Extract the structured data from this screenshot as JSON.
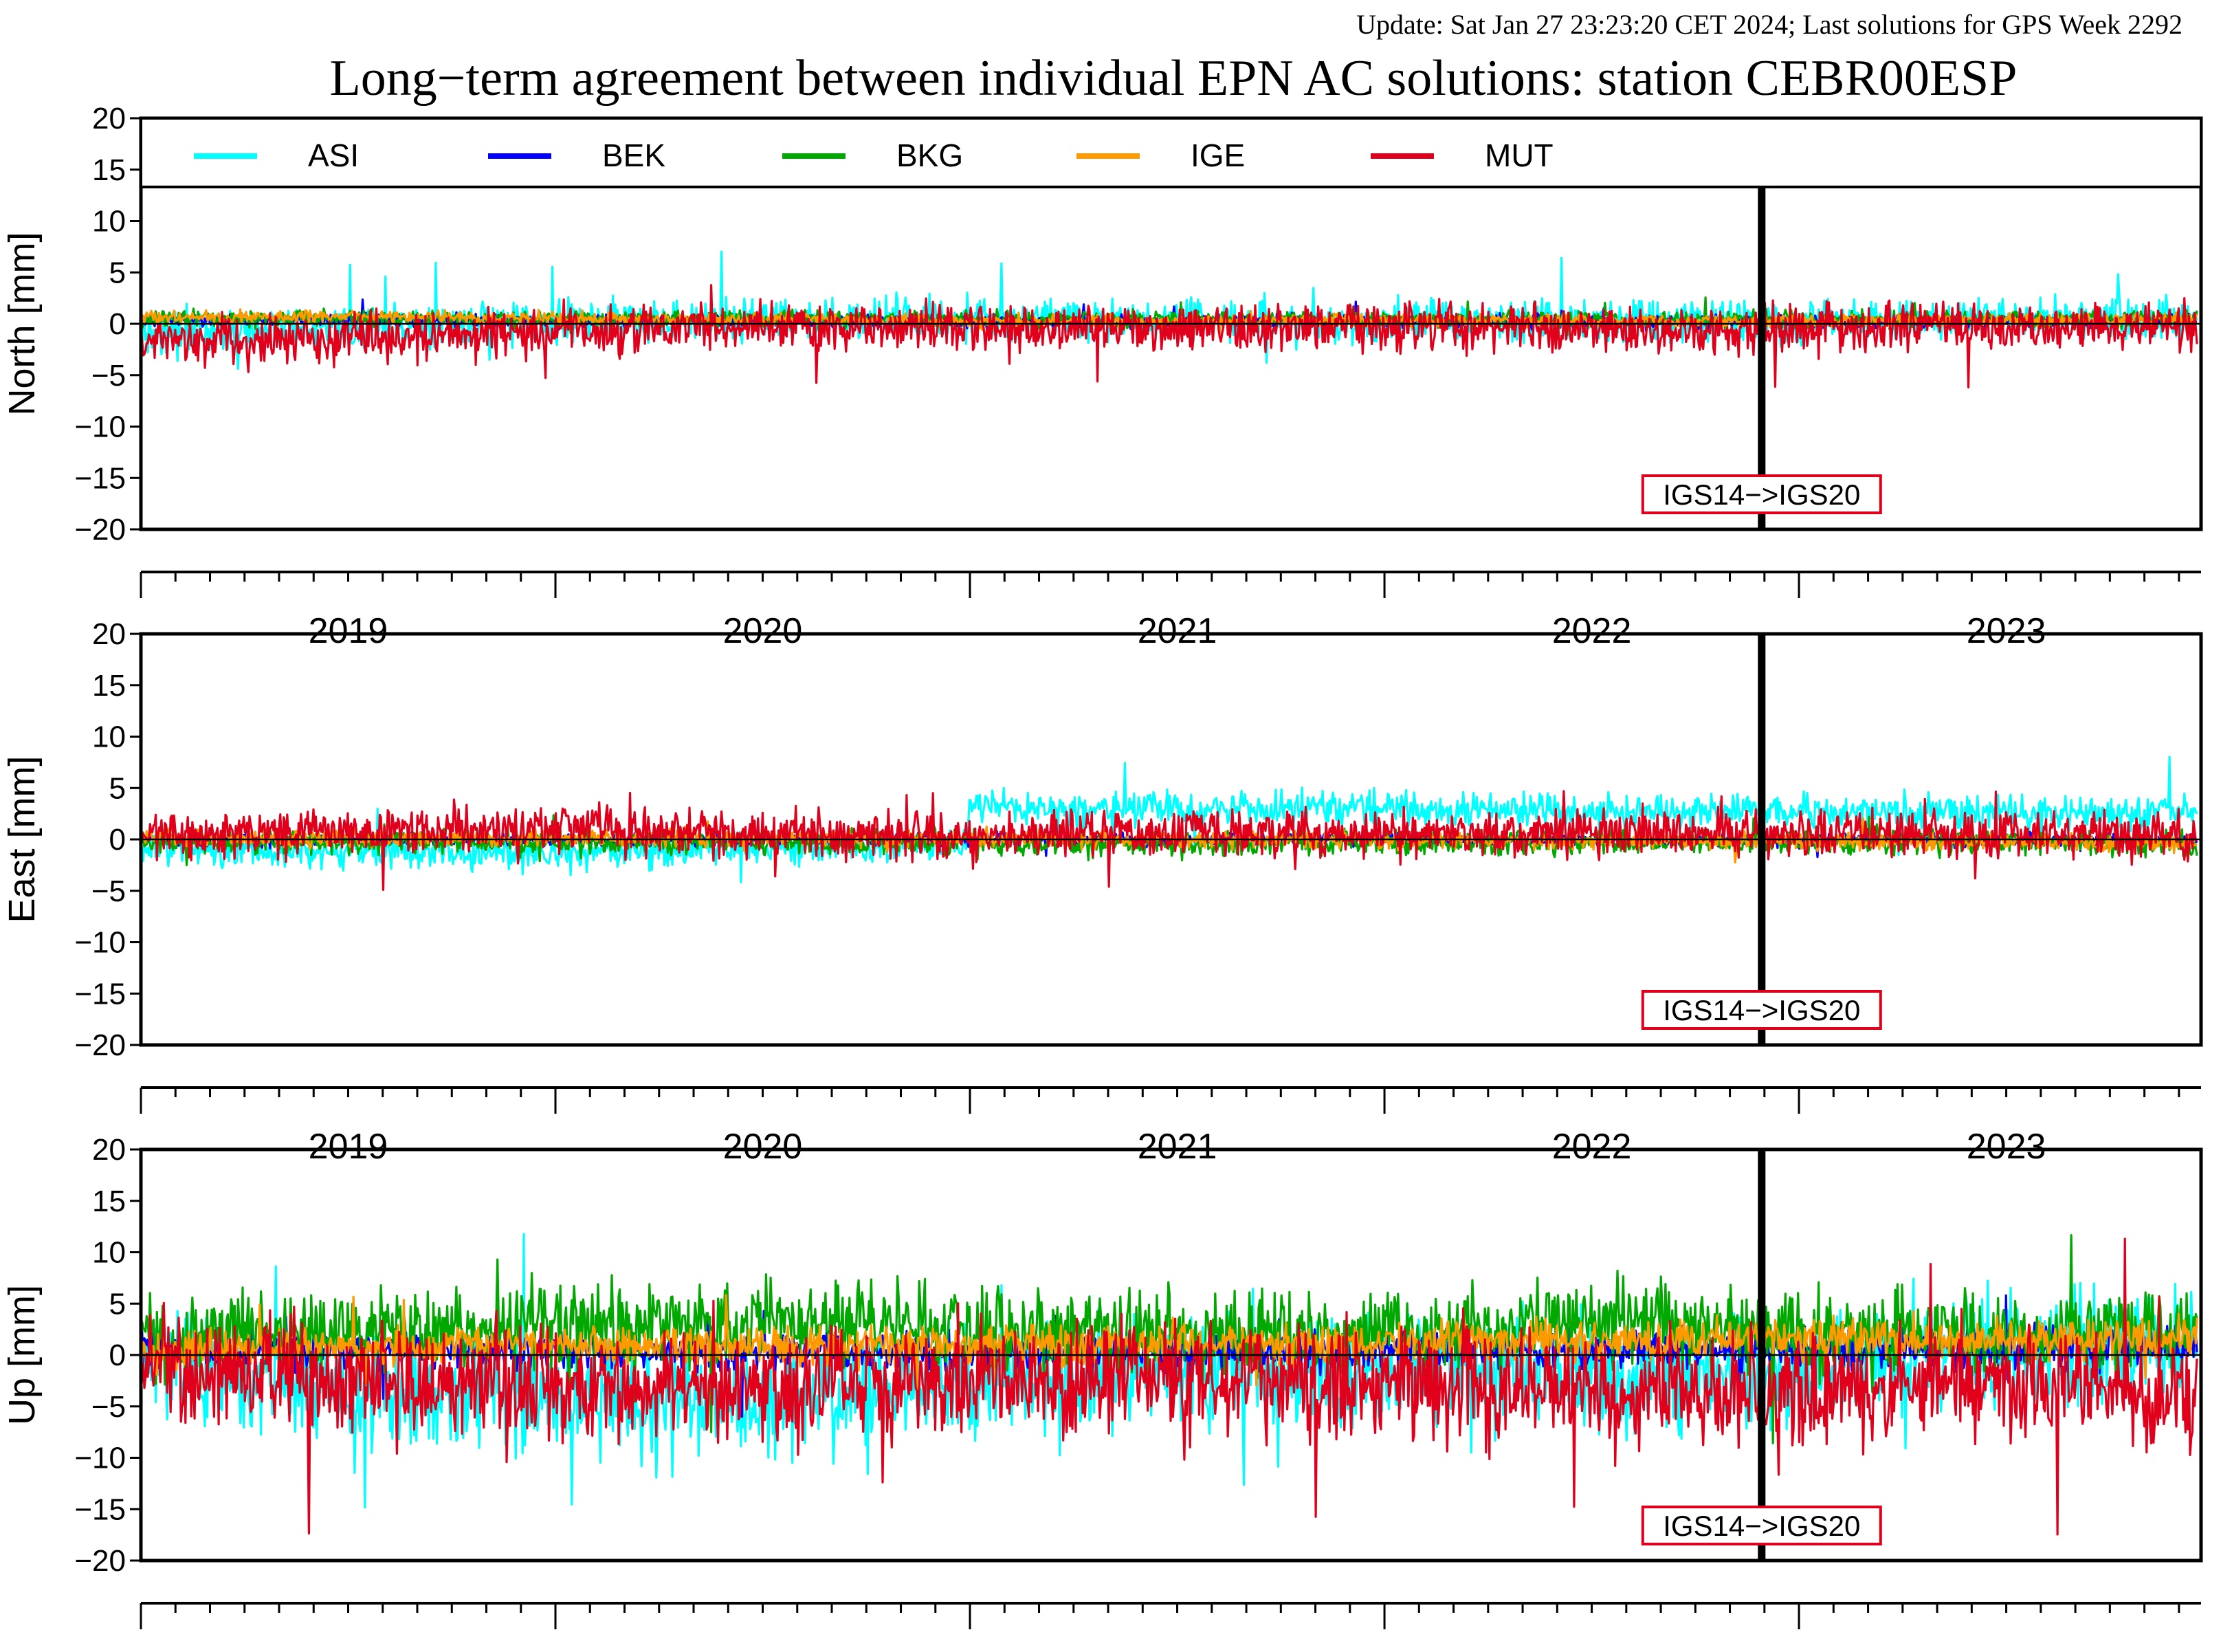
{
  "update_text": "Update: Sat Jan 27 23:23:20 CET 2024; Last solutions for GPS Week 2292",
  "colors": {
    "update": "#8b1a1a",
    "ASI": "#00ffff",
    "BEK": "#0000ff",
    "BKG": "#00a800",
    "IGE": "#ff9900",
    "MUT": "#e0001b",
    "annotation_border": "#e0001b"
  },
  "chart_data": {
    "type": "line",
    "title": "Long−term agreement between individual EPN AC solutions: station CEBR00ESP",
    "legend": {
      "placement": "top-inside-first-panel",
      "entries": [
        "ASI",
        "BEK",
        "BKG",
        "IGE",
        "MUT"
      ]
    },
    "x_range": [
      2018.5,
      2023.47
    ],
    "x_tick_labels": [
      "2019",
      "2020",
      "2021",
      "2022",
      "2023"
    ],
    "y_range": [
      -20,
      20
    ],
    "y_ticks": [
      20,
      15,
      10,
      5,
      0,
      -5,
      -10,
      -15,
      -20
    ],
    "y_tick_labels": [
      "20",
      "15",
      "10",
      "5",
      "0",
      "−5",
      "−10",
      "−15",
      "−20"
    ],
    "reference_frame_change": {
      "x": 2022.41,
      "label": "IGS14−>IGS20"
    },
    "panels": [
      {
        "ylabel": "North [mm]",
        "series": [
          {
            "name": "ASI",
            "x": [
              2018.5,
              2019.0,
              2019.5,
              2020.0,
              2020.5,
              2021.0,
              2021.5,
              2022.0,
              2022.41,
              2023.0,
              2023.46
            ],
            "values": [
              -0.8,
              -0.6,
              0.3,
              0.4,
              0.5,
              0.3,
              0.2,
              0.4,
              0.3,
              0.5,
              0.3
            ],
            "noise": 1.0
          },
          {
            "name": "BEK",
            "x": [
              2018.5,
              2019.5,
              2020.5,
              2021.5,
              2022.41,
              2023.46
            ],
            "values": [
              0.4,
              0.3,
              0.2,
              0.3,
              0.2,
              0.3
            ],
            "noise": 0.3
          },
          {
            "name": "BKG",
            "x": [
              2018.5,
              2019.5,
              2020.5,
              2021.5,
              2022.41,
              2023.46
            ],
            "values": [
              0.5,
              0.5,
              0.4,
              0.4,
              0.4,
              0.4
            ],
            "noise": 0.4
          },
          {
            "name": "IGE",
            "x": [
              2018.5,
              2019.0,
              2019.5,
              2020.5,
              2021.5,
              2022.41,
              2023.46
            ],
            "values": [
              0.7,
              0.7,
              0.5,
              0.3,
              0.3,
              0.3,
              0.4
            ],
            "noise": 0.3
          },
          {
            "name": "MUT",
            "x": [
              2018.5,
              2018.8,
              2019.2,
              2019.5,
              2020.0,
              2020.5,
              2021.0,
              2021.5,
              2022.0,
              2022.41,
              2023.0,
              2023.46
            ],
            "values": [
              -1.5,
              -1.7,
              -1.2,
              -0.6,
              -0.4,
              -0.5,
              -0.4,
              -0.2,
              -0.5,
              -0.6,
              -0.2,
              -0.3
            ],
            "noise": 1.1
          }
        ]
      },
      {
        "ylabel": "East [mm]",
        "series": [
          {
            "name": "ASI",
            "x": [
              2018.5,
              2019.0,
              2019.5,
              2020.0,
              2020.49,
              2020.5,
              2021.0,
              2021.5,
              2022.0,
              2022.41,
              2023.0,
              2023.46
            ],
            "values": [
              -0.8,
              -1.2,
              -1.4,
              -0.8,
              -0.5,
              3.3,
              3.0,
              3.0,
              2.8,
              2.8,
              2.5,
              2.8
            ],
            "noise": 0.8
          },
          {
            "name": "BEK",
            "x": [
              2018.5,
              2019.5,
              2020.5,
              2021.5,
              2022.41,
              2023.46
            ],
            "values": [
              0.0,
              -0.1,
              0.0,
              0.0,
              -0.1,
              0.0
            ],
            "noise": 0.3
          },
          {
            "name": "BKG",
            "x": [
              2018.5,
              2019.5,
              2020.5,
              2021.0,
              2021.5,
              2022.41,
              2023.46
            ],
            "values": [
              -0.2,
              -0.3,
              -0.4,
              -0.5,
              -0.3,
              -0.2,
              -0.3
            ],
            "noise": 0.6
          },
          {
            "name": "IGE",
            "x": [
              2018.5,
              2019.5,
              2020.5,
              2021.5,
              2022.41,
              2023.46
            ],
            "values": [
              0.1,
              0.2,
              0.1,
              0.0,
              -0.2,
              -0.3
            ],
            "noise": 0.4
          },
          {
            "name": "MUT",
            "x": [
              2018.5,
              2019.0,
              2019.5,
              2019.9,
              2020.5,
              2021.0,
              2021.5,
              2022.0,
              2022.41,
              2023.0,
              2023.46
            ],
            "values": [
              0.3,
              0.8,
              1.2,
              0.5,
              0.3,
              0.6,
              0.5,
              0.6,
              0.5,
              0.5,
              0.4
            ],
            "noise": 1.1
          }
        ]
      },
      {
        "ylabel": "Up [mm]",
        "series": [
          {
            "name": "ASI",
            "x": [
              2018.5,
              2019.0,
              2019.5,
              2019.8,
              2020.5,
              2021.0,
              2021.5,
              2022.0,
              2022.41,
              2023.0,
              2023.46
            ],
            "values": [
              -0.5,
              -3.5,
              -4.0,
              -5.0,
              -2.5,
              -1.5,
              -1.5,
              -2.0,
              -2.0,
              0.5,
              1.0
            ],
            "noise": 2.6
          },
          {
            "name": "BEK",
            "x": [
              2018.5,
              2019.5,
              2020.5,
              2021.5,
              2022.41,
              2023.46
            ],
            "values": [
              0.5,
              0.5,
              0.3,
              0.4,
              0.5,
              0.8
            ],
            "noise": 0.9
          },
          {
            "name": "BKG",
            "x": [
              2018.5,
              2019.0,
              2019.5,
              2020.0,
              2020.5,
              2021.0,
              2021.5,
              2022.0,
              2022.41,
              2023.0,
              2023.46
            ],
            "values": [
              1.5,
              2.5,
              3.0,
              3.5,
              2.5,
              2.0,
              2.0,
              3.5,
              2.5,
              2.0,
              2.5
            ],
            "noise": 1.9
          },
          {
            "name": "IGE",
            "x": [
              2018.5,
              2019.5,
              2020.5,
              2021.5,
              2022.41,
              2023.46
            ],
            "values": [
              0.5,
              1.0,
              1.0,
              1.2,
              1.5,
              1.5
            ],
            "noise": 0.9
          },
          {
            "name": "MUT",
            "x": [
              2018.5,
              2019.0,
              2019.5,
              2020.0,
              2020.5,
              2021.0,
              2021.5,
              2022.0,
              2022.41,
              2023.0,
              2023.46
            ],
            "values": [
              -1.5,
              -2.0,
              -3.5,
              -3.5,
              -2.5,
              -2.5,
              -2.5,
              -3.5,
              -3.5,
              -3.0,
              -3.5
            ],
            "noise": 2.6
          }
        ]
      }
    ]
  }
}
